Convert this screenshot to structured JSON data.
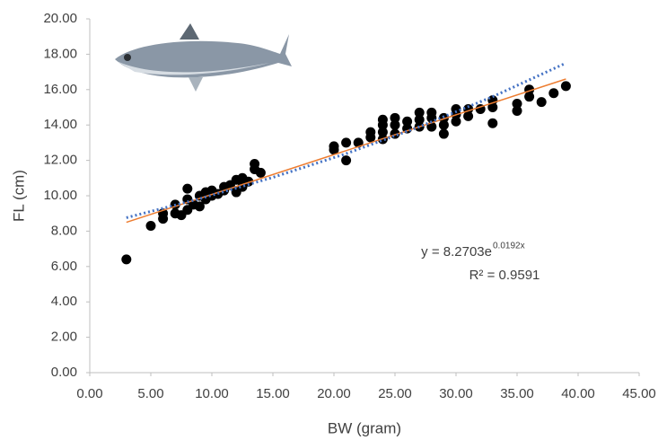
{
  "chart_data": {
    "type": "scatter",
    "x_label": "BW (gram)",
    "y_label": "FL (cm)",
    "xlim": [
      0,
      45
    ],
    "ylim": [
      0,
      20
    ],
    "xticks": [
      {
        "value": 0,
        "label": "0.00"
      },
      {
        "value": 5,
        "label": "5.00"
      },
      {
        "value": 10,
        "label": "10.00"
      },
      {
        "value": 15,
        "label": "15.00"
      },
      {
        "value": 20,
        "label": "20.00"
      },
      {
        "value": 25,
        "label": "25.00"
      },
      {
        "value": 30,
        "label": "30.00"
      },
      {
        "value": 35,
        "label": "35.00"
      },
      {
        "value": 40,
        "label": "40.00"
      },
      {
        "value": 45,
        "label": "45.00"
      }
    ],
    "yticks": [
      {
        "value": 0,
        "label": "0.00"
      },
      {
        "value": 2,
        "label": "2.00"
      },
      {
        "value": 4,
        "label": "4.00"
      },
      {
        "value": 6,
        "label": "6.00"
      },
      {
        "value": 8,
        "label": "8.00"
      },
      {
        "value": 10,
        "label": "10.00"
      },
      {
        "value": 12,
        "label": "12.00"
      },
      {
        "value": 14,
        "label": "14.00"
      },
      {
        "value": 16,
        "label": "16.00"
      },
      {
        "value": 18,
        "label": "18.00"
      },
      {
        "value": 20,
        "label": "20.00"
      }
    ],
    "grid": false,
    "points": {
      "color": "#000000",
      "x": [
        3,
        5,
        6,
        6,
        7,
        7,
        7.5,
        8,
        8,
        8,
        8.5,
        9,
        9,
        9.5,
        9.5,
        10,
        10,
        10.5,
        11,
        11,
        11.5,
        12,
        12,
        12.5,
        12.5,
        13,
        13.5,
        13.5,
        14,
        20,
        20,
        21,
        21,
        22,
        23,
        23,
        24,
        24,
        24,
        24,
        25,
        25,
        25,
        26,
        26,
        27,
        27,
        27,
        28,
        28,
        28,
        29,
        29,
        29,
        30,
        30,
        30,
        31,
        31,
        32,
        33,
        33,
        33,
        35,
        35,
        36,
        36,
        37,
        38,
        39
      ],
      "y": [
        6.4,
        8.3,
        8.7,
        9.0,
        9.0,
        9.5,
        8.9,
        9.2,
        9.8,
        10.4,
        9.5,
        9.4,
        10.0,
        9.8,
        10.2,
        10.0,
        10.3,
        10.1,
        10.5,
        10.3,
        10.6,
        10.2,
        10.9,
        10.5,
        11.0,
        10.8,
        11.5,
        11.8,
        11.3,
        12.6,
        12.8,
        12.0,
        13.0,
        13.0,
        13.3,
        13.6,
        13.2,
        13.6,
        14.0,
        14.3,
        13.5,
        14.0,
        14.4,
        13.8,
        14.2,
        13.9,
        14.3,
        14.7,
        13.9,
        14.4,
        14.7,
        13.5,
        14.0,
        14.4,
        14.2,
        14.6,
        14.9,
        14.5,
        14.9,
        14.9,
        14.1,
        15.0,
        15.4,
        14.8,
        15.2,
        15.6,
        16.0,
        15.3,
        15.8,
        16.2
      ]
    },
    "trendlines": [
      {
        "color": "#ed7d31",
        "dashed": false,
        "x": [
          3,
          39
        ],
        "values": [
          8.5,
          16.6
        ]
      },
      {
        "color": "#4472c4",
        "dashed": true,
        "x": [
          3,
          9,
          15,
          21,
          27,
          33,
          39
        ],
        "values": [
          8.76,
          9.83,
          11.04,
          12.38,
          13.9,
          15.6,
          17.5
        ]
      }
    ],
    "annotation": {
      "equation": "y = 8.2703e",
      "exponent": "0.0192x",
      "r2": "R² = 0.9591"
    }
  }
}
